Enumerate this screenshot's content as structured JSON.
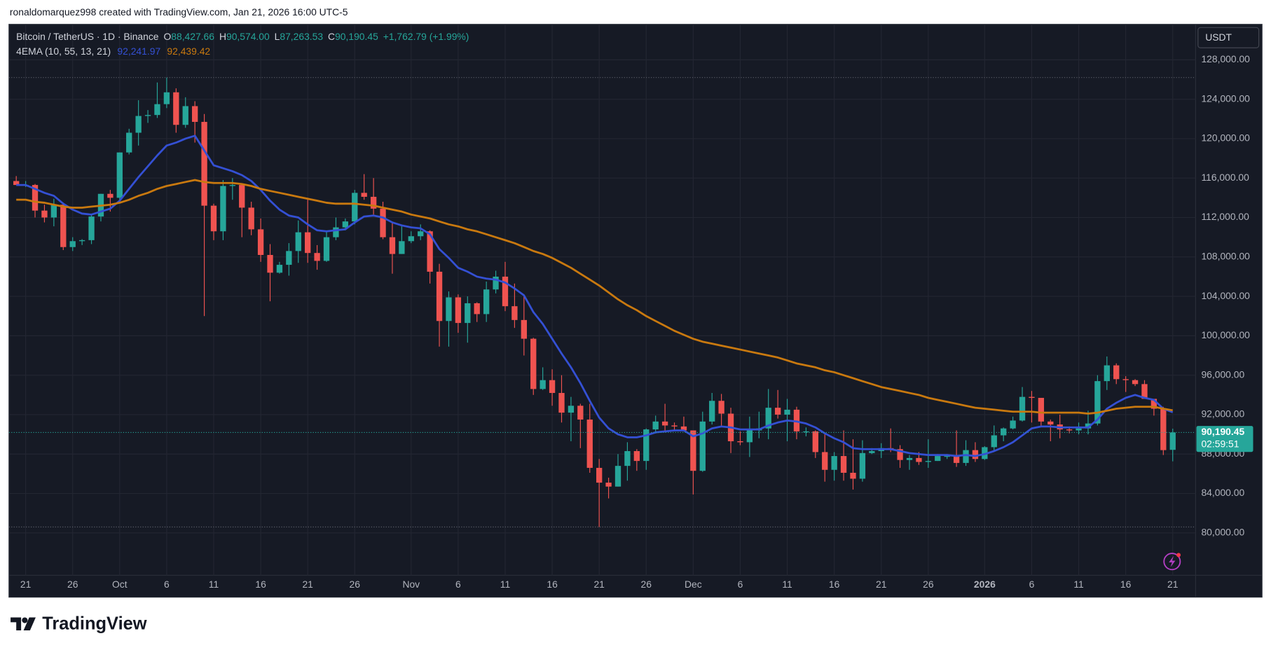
{
  "header": {
    "attribution": "ronaldomarquez998 created with TradingView.com, Jan 21, 2026 16:00 UTC-5"
  },
  "chart_data": {
    "type": "candlestick",
    "symbol": "Bitcoin / TetherUS · 1D · Binance",
    "ohlc_legend": [
      {
        "key": "O",
        "text": "88,427.66"
      },
      {
        "key": "H",
        "text": "90,574.00"
      },
      {
        "key": "L",
        "text": "87,263.53"
      },
      {
        "key": "C",
        "text": "90,190.45"
      }
    ],
    "change": "+1,762.79 (+1.99%)",
    "indicator": "4EMA (10, 55, 13, 21)",
    "currency": "USDT",
    "last_price_label": "90,190.45",
    "countdown": "02:59:51",
    "up_color": "#26a69a",
    "down_color": "#ef5350",
    "grid": true,
    "categories": [
      null,
      "21",
      null,
      null,
      null,
      null,
      "26",
      null,
      null,
      null,
      null,
      "Oct",
      null,
      null,
      null,
      null,
      "6",
      null,
      null,
      null,
      null,
      "11",
      null,
      null,
      null,
      null,
      "16",
      null,
      null,
      null,
      null,
      "21",
      null,
      null,
      null,
      null,
      "26",
      null,
      null,
      null,
      null,
      null,
      "Nov",
      null,
      null,
      null,
      null,
      "6",
      null,
      null,
      null,
      null,
      "11",
      null,
      null,
      null,
      null,
      "16",
      null,
      null,
      null,
      null,
      "21",
      null,
      null,
      null,
      null,
      "26",
      null,
      null,
      null,
      null,
      "Dec",
      null,
      null,
      null,
      null,
      "6",
      null,
      null,
      null,
      null,
      "11",
      null,
      null,
      null,
      null,
      "16",
      null,
      null,
      null,
      null,
      "21",
      null,
      null,
      null,
      null,
      "26",
      null,
      null,
      null,
      null,
      null,
      "2026",
      null,
      null,
      null,
      null,
      "6",
      null,
      null,
      null,
      null,
      "11",
      null,
      null,
      null,
      null,
      "16",
      null,
      null,
      null,
      null,
      "21"
    ],
    "open": [
      115700,
      115300,
      115300,
      112700,
      112000,
      113300,
      109000,
      109600,
      109700,
      112100,
      114400,
      114000,
      118600,
      120600,
      122300,
      122400,
      123500,
      124700,
      121400,
      123300,
      121700,
      113200,
      110600,
      115200,
      115300,
      113000,
      110800,
      108200,
      106400,
      107200,
      108600,
      110500,
      108400,
      107600,
      110000,
      111000,
      111600,
      114500,
      114100,
      112900,
      110000,
      108300,
      109600,
      110100,
      110600,
      106500,
      101500,
      103900,
      101300,
      103300,
      102200,
      104700,
      106000,
      103000,
      101600,
      99700,
      94600,
      95500,
      94200,
      92200,
      92900,
      91500,
      86600,
      85100,
      84700,
      86800,
      88300,
      87300,
      90500,
      91300,
      90900,
      90800,
      90400,
      86300,
      91300,
      93400,
      92100,
      89300,
      89200,
      90400,
      90600,
      92700,
      92000,
      92500,
      90300,
      90300,
      88200,
      86400,
      87800,
      86100,
      85500,
      88100,
      88300,
      88600,
      88500,
      87400,
      87600,
      87200,
      87300,
      87800,
      87800,
      87100,
      88400,
      87500,
      88700,
      89900,
      90600,
      91400,
      93800,
      93700,
      91300,
      91000,
      90500,
      90400,
      90600,
      91100,
      95400,
      97000,
      95600,
      95500,
      95100,
      93600,
      92600,
      88427.66
    ],
    "high": [
      116200,
      115700,
      115400,
      113300,
      113900,
      113500,
      110000,
      109800,
      112300,
      114400,
      114800,
      118600,
      121000,
      123900,
      122900,
      125700,
      126200,
      125100,
      124200,
      123800,
      122500,
      113400,
      115800,
      116000,
      115400,
      113600,
      111900,
      109300,
      107500,
      109400,
      111700,
      114000,
      109200,
      110600,
      112000,
      111900,
      114800,
      116400,
      116000,
      113600,
      111500,
      111100,
      110600,
      111300,
      110700,
      107300,
      104500,
      104200,
      104000,
      103400,
      105500,
      106600,
      107500,
      105300,
      104000,
      99800,
      96800,
      96600,
      96000,
      93800,
      93100,
      93100,
      87500,
      85600,
      88000,
      89200,
      88500,
      90600,
      91900,
      93100,
      91200,
      91800,
      90400,
      92300,
      94200,
      94100,
      92700,
      90300,
      91800,
      92300,
      94600,
      94500,
      93600,
      92800,
      90700,
      90400,
      90000,
      88200,
      90400,
      89500,
      89400,
      88600,
      89100,
      90600,
      88900,
      87900,
      88200,
      89500,
      88000,
      88000,
      90400,
      89400,
      89200,
      88800,
      90900,
      90700,
      91800,
      94800,
      94400,
      93700,
      91500,
      92000,
      90800,
      91200,
      92400,
      96000,
      97900,
      97200,
      95900,
      95600,
      95500,
      93600,
      92800,
      90574
    ],
    "low": [
      115300,
      115100,
      112000,
      111500,
      111100,
      108700,
      108600,
      109200,
      109300,
      111600,
      112600,
      113800,
      118400,
      119300,
      121600,
      122100,
      123100,
      120600,
      121100,
      119600,
      102000,
      109700,
      109700,
      113800,
      110000,
      110200,
      107500,
      103500,
      106300,
      106100,
      107400,
      107400,
      106700,
      107500,
      109700,
      110700,
      111300,
      113800,
      112300,
      109800,
      106300,
      108300,
      109400,
      109700,
      105300,
      98900,
      98900,
      100300,
      99300,
      101400,
      101400,
      104300,
      102500,
      100800,
      98000,
      94000,
      94500,
      92900,
      91200,
      89300,
      88600,
      86100,
      80600,
      83500,
      84700,
      85300,
      86300,
      86400,
      90100,
      90200,
      90300,
      90400,
      83900,
      86200,
      91000,
      90900,
      88100,
      88900,
      87700,
      89600,
      89500,
      91600,
      89300,
      89500,
      89800,
      87600,
      85200,
      85300,
      85300,
      84400,
      85200,
      88000,
      87600,
      88200,
      86600,
      86400,
      86900,
      86600,
      87300,
      87500,
      86700,
      86800,
      87200,
      87400,
      88300,
      89300,
      90500,
      91300,
      91200,
      90900,
      89300,
      89600,
      90100,
      90000,
      90000,
      90900,
      94500,
      95100,
      94300,
      94900,
      93600,
      91900,
      87900,
      87263.53
    ],
    "close": [
      115300,
      115300,
      112700,
      112000,
      113300,
      109000,
      109600,
      109700,
      112100,
      114400,
      114000,
      118600,
      120600,
      122300,
      122400,
      123500,
      124700,
      121400,
      123300,
      121700,
      113200,
      110600,
      115200,
      115300,
      113000,
      110800,
      108200,
      106400,
      107200,
      108600,
      110500,
      108400,
      107600,
      110000,
      111000,
      111600,
      114500,
      114100,
      112900,
      110000,
      108300,
      109600,
      110100,
      110600,
      106500,
      101500,
      103900,
      101300,
      103300,
      102200,
      104700,
      106000,
      103000,
      101600,
      99700,
      94600,
      95500,
      94200,
      92200,
      92900,
      91500,
      86600,
      85100,
      84700,
      86800,
      88300,
      87300,
      90500,
      91300,
      90900,
      90800,
      90400,
      86300,
      91300,
      93400,
      92100,
      89300,
      89200,
      90400,
      90600,
      92700,
      92000,
      92500,
      90300,
      90300,
      88200,
      86400,
      87800,
      86100,
      85500,
      88100,
      88300,
      88600,
      88500,
      87400,
      87600,
      87200,
      87300,
      87800,
      87800,
      87100,
      88400,
      87500,
      88700,
      89900,
      90600,
      91400,
      93800,
      93700,
      91300,
      91000,
      90500,
      90400,
      90600,
      91100,
      95400,
      97000,
      95600,
      95500,
      95100,
      93600,
      92600,
      88400,
      90190.45
    ],
    "series": [
      {
        "color": "#3450d4",
        "last_value_label": "92,241.97",
        "values": [
          115300,
          115300,
          114900,
          114500,
          114200,
          113400,
          112800,
          112400,
          112300,
          112600,
          112900,
          113700,
          114900,
          116100,
          117200,
          118300,
          119300,
          119600,
          120000,
          120300,
          118800,
          117300,
          117000,
          116700,
          116300,
          115700,
          114800,
          113700,
          112800,
          112200,
          112000,
          111300,
          110700,
          110600,
          110700,
          110800,
          111500,
          112100,
          112200,
          112000,
          111500,
          111200,
          111000,
          110900,
          110300,
          108800,
          107900,
          106900,
          106500,
          106000,
          105800,
          105700,
          105400,
          104800,
          104100,
          102400,
          101200,
          99700,
          98200,
          96800,
          95200,
          93400,
          91700,
          90600,
          90000,
          89700,
          89700,
          89900,
          90200,
          90300,
          90400,
          90400,
          89800,
          90100,
          90600,
          90800,
          90700,
          90500,
          90500,
          90500,
          90900,
          91200,
          91400,
          91300,
          91100,
          90700,
          90100,
          89600,
          89200,
          88600,
          88500,
          88500,
          88500,
          88500,
          88300,
          88100,
          88000,
          87900,
          87900,
          87900,
          87800,
          87900,
          87800,
          88000,
          88300,
          88700,
          89200,
          89900,
          90600,
          90800,
          90800,
          90700,
          90700,
          90700,
          90700,
          91500,
          92600,
          93200,
          93700,
          94000,
          93700,
          93500,
          92600,
          92241.97
        ]
      },
      {
        "color": "#c9790f",
        "last_value_label": "92,439.42",
        "values": [
          113800,
          113800,
          113600,
          113500,
          113300,
          113100,
          113000,
          113000,
          113100,
          113200,
          113300,
          113500,
          113800,
          114200,
          114500,
          114900,
          115200,
          115400,
          115600,
          115800,
          115600,
          115500,
          115500,
          115500,
          115400,
          115200,
          114900,
          114700,
          114500,
          114300,
          114100,
          113900,
          113700,
          113500,
          113400,
          113400,
          113400,
          113300,
          113200,
          113000,
          112800,
          112600,
          112300,
          112100,
          111900,
          111600,
          111300,
          111100,
          110800,
          110600,
          110300,
          110000,
          109700,
          109400,
          109000,
          108600,
          108300,
          107900,
          107400,
          106900,
          106300,
          105700,
          105100,
          104400,
          103700,
          103100,
          102600,
          102000,
          101500,
          101000,
          100500,
          100100,
          99700,
          99400,
          99200,
          99000,
          98800,
          98600,
          98400,
          98200,
          98000,
          97800,
          97500,
          97200,
          97000,
          96800,
          96500,
          96300,
          96000,
          95700,
          95400,
          95100,
          94800,
          94600,
          94400,
          94200,
          94000,
          93700,
          93500,
          93300,
          93100,
          92900,
          92700,
          92600,
          92500,
          92400,
          92300,
          92300,
          92300,
          92200,
          92200,
          92200,
          92200,
          92200,
          92100,
          92200,
          92400,
          92600,
          92700,
          92800,
          92800,
          92800,
          92600,
          92439.42
        ]
      }
    ],
    "ylim": [
      75700,
      131600
    ],
    "yticks": [
      {
        "value": 128000,
        "label": "128,000.00"
      },
      {
        "value": 124000,
        "label": "124,000.00"
      },
      {
        "value": 120000,
        "label": "120,000.00"
      },
      {
        "value": 116000,
        "label": "116,000.00"
      },
      {
        "value": 112000,
        "label": "112,000.00"
      },
      {
        "value": 108000,
        "label": "108,000.00"
      },
      {
        "value": 104000,
        "label": "104,000.00"
      },
      {
        "value": 100000,
        "label": "100,000.00"
      },
      {
        "value": 96000,
        "label": "96,000.00"
      },
      {
        "value": 92000,
        "label": "92,000.00"
      },
      {
        "value": 88000,
        "label": "88,000.00"
      },
      {
        "value": 84000,
        "label": "84,000.00"
      },
      {
        "value": 80000,
        "label": "80,000.00"
      }
    ]
  },
  "footer": {
    "brand": "TradingView"
  }
}
